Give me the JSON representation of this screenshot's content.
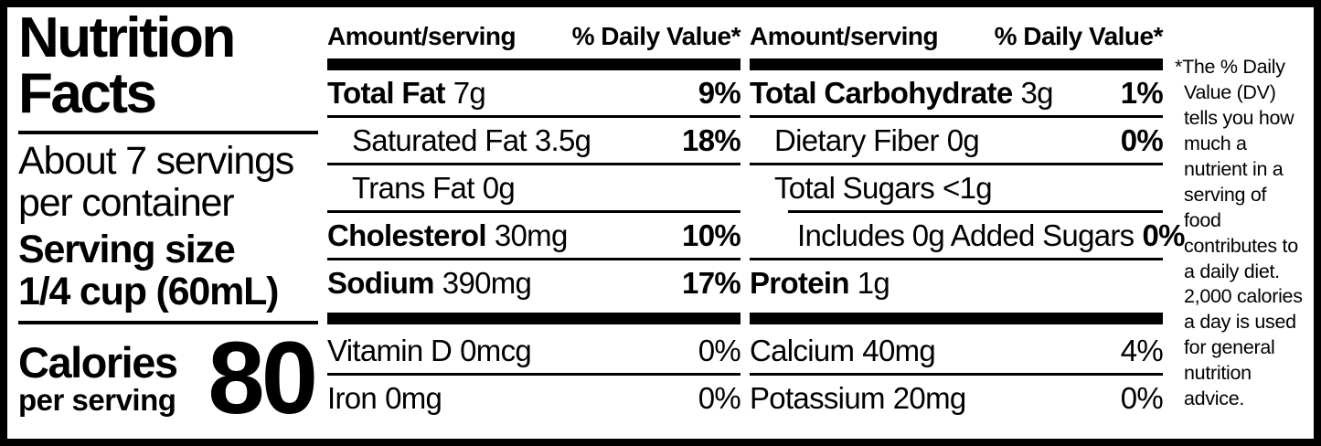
{
  "panel": {
    "title_line1": "Nutrition",
    "title_line2": "Facts",
    "servings_line1": "About 7 servings",
    "servings_line2": "per container",
    "serving_size_label": "Serving size",
    "serving_size_value": "1/4 cup (60mL)",
    "calories_label": "Calories",
    "calories_sublabel": "per serving",
    "calories_value": "80"
  },
  "columns": [
    {
      "header": {
        "amount": "Amount/serving",
        "dv": "% Daily Value*"
      },
      "main_rows": [
        {
          "name": "Total Fat",
          "amount": "7g",
          "dv": "9%"
        },
        {
          "name": "Saturated Fat",
          "amount": "3.5g",
          "dv": "18%"
        },
        {
          "name": "Trans Fat",
          "amount": "0g",
          "dv": ""
        },
        {
          "name": "Cholesterol",
          "amount": "30mg",
          "dv": "10%"
        },
        {
          "name": "Sodium",
          "amount": "390mg",
          "dv": "17%"
        }
      ],
      "micro_rows": [
        {
          "name": "Vitamin D",
          "amount": "0mcg",
          "dv": "0%"
        },
        {
          "name": "Iron",
          "amount": "0mg",
          "dv": "0%"
        }
      ]
    },
    {
      "header": {
        "amount": "Amount/serving",
        "dv": "% Daily Value*"
      },
      "main_rows": [
        {
          "name": "Total Carbohydrate",
          "amount": "3g",
          "dv": "1%"
        },
        {
          "name": "Dietary Fiber",
          "amount": "0g",
          "dv": "0%"
        },
        {
          "name": "Total Sugars",
          "amount": "<1g",
          "dv": ""
        },
        {
          "name": "Includes 0g Added Sugars",
          "amount": "",
          "dv": "0%"
        },
        {
          "name": "Protein",
          "amount": "1g",
          "dv": ""
        }
      ],
      "micro_rows": [
        {
          "name": "Calcium",
          "amount": "40mg",
          "dv": "4%"
        },
        {
          "name": "Potassium",
          "amount": "20mg",
          "dv": "0%"
        }
      ]
    }
  ],
  "footnote": "*The % Daily Value (DV) tells you how much a nutrient in a serving of food contributes to a daily diet. 2,000 calories a day is used for general nutrition advice.",
  "colors": {
    "ink": "#000000",
    "paper": "#ffffff"
  }
}
